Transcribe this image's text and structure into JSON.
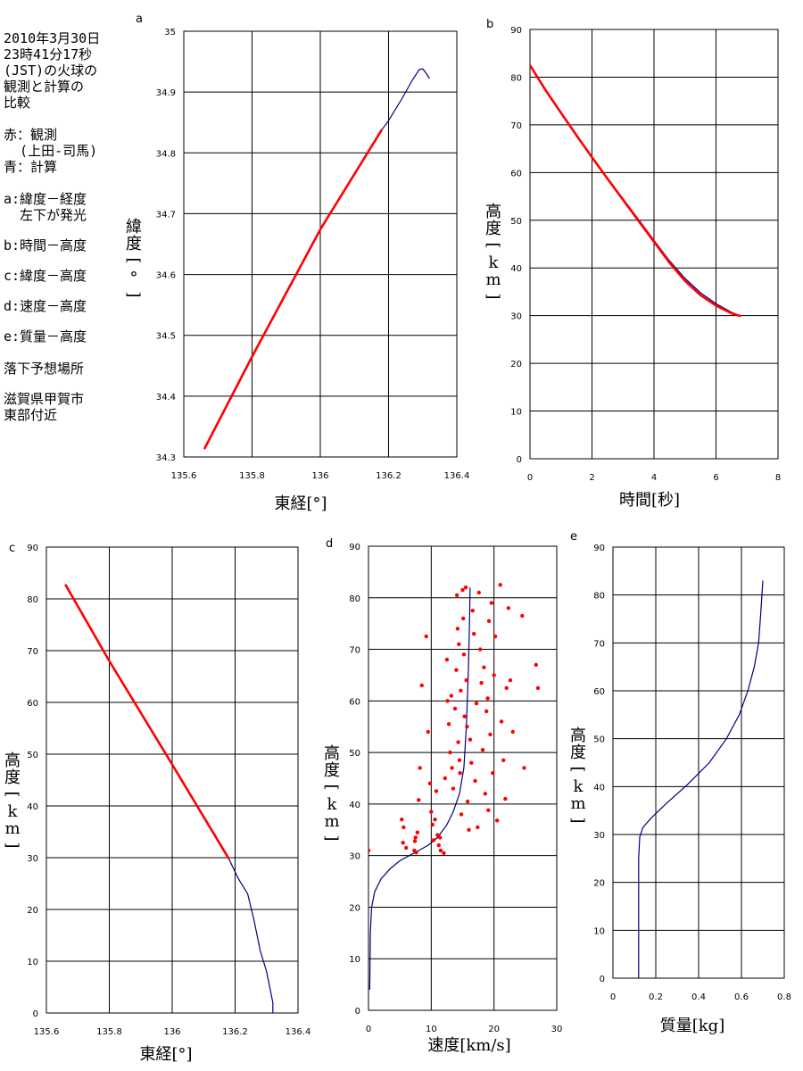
{
  "legend": {
    "title_lines": [
      "2010年3月30日",
      "23時41分17秒",
      "(JST)の火球の",
      "観測と計算の",
      "比較"
    ],
    "color_lines": [
      "赤：観測",
      "  (上田-司馬)",
      "青：計算"
    ],
    "panel_descriptions": [
      [
        "a:緯度－経度",
        "  左下が発光"
      ],
      [
        "b:時間－高度"
      ],
      [
        "c:緯度－高度"
      ],
      [
        "d:速度－高度"
      ],
      [
        "e:質量－高度"
      ]
    ],
    "site_lines": [
      "落下予想場所"
    ],
    "place_lines": [
      "滋賀県甲賀市",
      "東部付近"
    ]
  },
  "colors": {
    "observed": "#ff0000",
    "computed": "#000080",
    "grid": "#000000"
  },
  "chart_data": [
    {
      "id": "a",
      "type": "line",
      "panel_letter": "a",
      "xlabel": "東経[°]",
      "ylabel": "緯度[°]",
      "xlim": [
        135.6,
        136.4
      ],
      "ylim": [
        34.3,
        35.0
      ],
      "xticks": [
        135.6,
        135.8,
        136,
        136.2,
        136.4
      ],
      "yticks": [
        34.3,
        34.4,
        34.5,
        34.6,
        34.7,
        34.8,
        34.9,
        35
      ],
      "xtick_labels": [
        "135.6",
        "135.8",
        "136",
        "136.2",
        "136.4"
      ],
      "ytick_labels": [
        "34.3",
        "34.4",
        "34.5",
        "34.6",
        "34.7",
        "34.8",
        "34.9",
        "35"
      ],
      "series": [
        {
          "role": "computed",
          "x": [
            135.66,
            135.8,
            136.0,
            136.18,
            136.2,
            136.24,
            136.27,
            136.29,
            136.3,
            136.31,
            136.32
          ],
          "y": [
            34.313,
            34.465,
            34.674,
            34.838,
            34.853,
            34.89,
            34.92,
            34.937,
            34.938,
            34.931,
            34.922
          ]
        },
        {
          "role": "observed",
          "x": [
            135.66,
            135.8,
            136.0,
            136.18
          ],
          "y": [
            34.313,
            34.465,
            34.674,
            34.838
          ]
        }
      ]
    },
    {
      "id": "b",
      "type": "line",
      "panel_letter": "b",
      "xlabel": "時間[秒]",
      "ylabel": "高度[km]",
      "xlim": [
        0,
        8
      ],
      "ylim": [
        0,
        90
      ],
      "xticks": [
        0,
        2,
        4,
        6,
        8
      ],
      "yticks": [
        0,
        10,
        20,
        30,
        40,
        50,
        60,
        70,
        80,
        90
      ],
      "xtick_labels": [
        "0",
        "2",
        "4",
        "6",
        "8"
      ],
      "ytick_labels": [
        "0",
        "10",
        "20",
        "30",
        "40",
        "50",
        "60",
        "70",
        "80",
        "90"
      ],
      "series": [
        {
          "role": "computed",
          "x": [
            0,
            0.5,
            1,
            1.5,
            2,
            2.5,
            3,
            3.5,
            4,
            4.5,
            5,
            5.5,
            6,
            6.5,
            6.8
          ],
          "y": [
            82.5,
            77.3,
            72.5,
            67.8,
            63.2,
            58.7,
            54.5,
            50.2,
            45.8,
            41.5,
            37.8,
            34.8,
            32.5,
            30.7,
            29.9
          ]
        },
        {
          "role": "observed",
          "x": [
            0,
            0.5,
            1,
            1.5,
            2,
            2.5,
            3,
            3.5,
            4,
            4.5,
            5,
            5.5,
            6,
            6.5,
            6.8
          ],
          "y": [
            82.5,
            77.3,
            72.5,
            67.8,
            63.2,
            58.7,
            54.3,
            49.9,
            45.5,
            41.1,
            37.3,
            34.3,
            32.1,
            30.5,
            29.9
          ]
        }
      ]
    },
    {
      "id": "c",
      "type": "line",
      "panel_letter": "c",
      "xlabel": "東経[°]",
      "ylabel": "高度[km]",
      "xlim": [
        135.6,
        136.4
      ],
      "ylim": [
        0,
        90
      ],
      "xticks": [
        135.6,
        135.8,
        136,
        136.2,
        136.4
      ],
      "yticks": [
        0,
        10,
        20,
        30,
        40,
        50,
        60,
        70,
        80,
        90
      ],
      "xtick_labels": [
        "135.6",
        "135.8",
        "136",
        "136.2",
        "136.4"
      ],
      "ytick_labels": [
        "0",
        "10",
        "20",
        "30",
        "40",
        "50",
        "60",
        "70",
        "80",
        "90"
      ],
      "series": [
        {
          "role": "computed",
          "x": [
            135.66,
            135.8,
            136.0,
            136.18,
            136.21,
            136.24,
            136.26,
            136.28,
            136.3,
            136.31,
            136.32,
            136.32
          ],
          "y": [
            82.8,
            68.0,
            48.0,
            29.8,
            26.0,
            23.0,
            18.0,
            12.0,
            8.0,
            5.0,
            2.0,
            0
          ]
        },
        {
          "role": "observed",
          "x": [
            135.66,
            135.8,
            136.0,
            136.18
          ],
          "y": [
            82.8,
            68.0,
            48.0,
            29.8
          ]
        }
      ]
    },
    {
      "id": "d",
      "type": "scatter",
      "panel_letter": "d",
      "xlabel": "速度[km/s]",
      "ylabel": "高度[km]",
      "xlim": [
        0,
        30
      ],
      "ylim": [
        0,
        90
      ],
      "xticks": [
        0,
        10,
        20,
        30
      ],
      "yticks": [
        0,
        10,
        20,
        30,
        40,
        50,
        60,
        70,
        80,
        90
      ],
      "xtick_labels": [
        "0",
        "10",
        "20",
        "30"
      ],
      "ytick_labels": [
        "0",
        "10",
        "20",
        "30",
        "40",
        "50",
        "60",
        "70",
        "80",
        "90"
      ],
      "series": [
        {
          "role": "computed",
          "mode": "line",
          "x": [
            0.2,
            0.3,
            0.5,
            1.0,
            2.0,
            3.5,
            5.0,
            6.5,
            8.0,
            9.5,
            11.0,
            12.5,
            13.5,
            14.5,
            15.2,
            15.6,
            15.9,
            16.1,
            16.2
          ],
          "y": [
            4,
            15,
            20,
            23,
            25.5,
            27.5,
            29,
            30,
            31,
            32,
            33.5,
            36,
            38.5,
            42,
            47,
            55,
            65,
            75,
            82
          ]
        },
        {
          "role": "observed",
          "mode": "points",
          "x": [
            0,
            5.3,
            5.5,
            5.6,
            6.0,
            7.3,
            7.4,
            7.5,
            7.6,
            7.8,
            8.0,
            8.2,
            8.5,
            9.2,
            9.5,
            9.8,
            10.0,
            10.2,
            10.4,
            10.6,
            10.8,
            11.0,
            11.2,
            11.4,
            11.5,
            12.0,
            12.2,
            12.5,
            12.6,
            12.8,
            13.0,
            13.2,
            13.3,
            13.5,
            13.8,
            14.0,
            14.1,
            14.2,
            14.3,
            14.4,
            14.5,
            14.6,
            14.7,
            14.8,
            15.0,
            15.1,
            15.2,
            15.3,
            15.5,
            15.6,
            15.7,
            15.8,
            16.0,
            16.2,
            16.4,
            16.6,
            16.8,
            17.0,
            17.2,
            17.4,
            17.6,
            17.8,
            18.0,
            18.2,
            18.4,
            18.6,
            18.8,
            19.0,
            19.1,
            19.2,
            19.4,
            19.6,
            19.8,
            20.0,
            20.2,
            20.5,
            21.0,
            21.2,
            21.5,
            21.8,
            22.0,
            22.3,
            22.6,
            23.0,
            24.5,
            24.8,
            26.7,
            27.0
          ],
          "y": [
            31.0,
            37.0,
            32.5,
            35.5,
            31.5,
            31.0,
            32.8,
            33.5,
            30.6,
            34.5,
            40.8,
            47.0,
            63.0,
            72.5,
            54.0,
            44.0,
            38.5,
            36.0,
            33.0,
            37.0,
            42.5,
            34.0,
            32.0,
            33.5,
            31.0,
            30.5,
            45.0,
            68.0,
            60.0,
            55.5,
            50.0,
            61.0,
            47.0,
            43.0,
            58.5,
            66.0,
            80.5,
            74.0,
            52.0,
            71.0,
            48.5,
            46.0,
            62.0,
            38.0,
            81.5,
            76.0,
            69.0,
            57.0,
            82.0,
            64.0,
            55.0,
            40.5,
            35.0,
            52.5,
            48.0,
            77.5,
            73.0,
            44.5,
            59.5,
            35.5,
            81.0,
            70.0,
            63.5,
            50.5,
            66.5,
            42.0,
            58.0,
            60.5,
            38.8,
            75.5,
            53.5,
            79.0,
            46.0,
            65.0,
            72.5,
            36.8,
            82.5,
            56.0,
            48.5,
            41.0,
            62.5,
            78.0,
            64.0,
            54.0,
            76.5,
            47.0,
            67.0,
            62.5
          ]
        }
      ]
    },
    {
      "id": "e",
      "type": "line",
      "panel_letter": "e",
      "xlabel": "質量[kg]",
      "ylabel": "高度[km]",
      "xlim": [
        0,
        0.8
      ],
      "ylim": [
        0,
        90
      ],
      "xticks": [
        0,
        0.2,
        0.4,
        0.6,
        0.8
      ],
      "yticks": [
        0,
        10,
        20,
        30,
        40,
        50,
        60,
        70,
        80,
        90
      ],
      "xtick_labels": [
        "0",
        "0.2",
        "0.4",
        "0.6",
        "0.8"
      ],
      "ytick_labels": [
        "0",
        "10",
        "20",
        "30",
        "40",
        "50",
        "60",
        "70",
        "80",
        "90"
      ],
      "series": [
        {
          "role": "computed",
          "x": [
            0.12,
            0.12,
            0.12,
            0.125,
            0.14,
            0.18,
            0.25,
            0.35,
            0.45,
            0.53,
            0.59,
            0.63,
            0.66,
            0.68,
            0.69,
            0.7
          ],
          "y": [
            0,
            10,
            25,
            29.5,
            31.5,
            33.5,
            36.5,
            40.5,
            45,
            50,
            55,
            60,
            65,
            70,
            76,
            83
          ]
        }
      ]
    }
  ]
}
